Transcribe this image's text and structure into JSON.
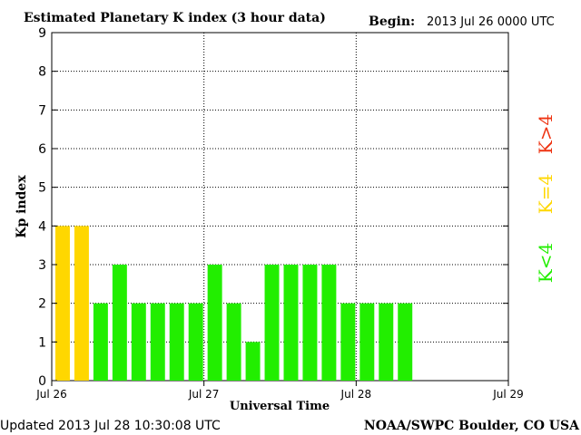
{
  "header": {
    "title": "Estimated Planetary K index (3 hour data)",
    "begin_label": "Begin:",
    "begin_value": "2013 Jul 26 0000 UTC"
  },
  "footer": {
    "updated": "Updated 2013 Jul 28 10:30:08 UTC",
    "source": "NOAA/SWPC Boulder, CO USA"
  },
  "legend": {
    "high": "K>4",
    "equal": "K=4",
    "low": "K<4"
  },
  "colors": {
    "low": "#22ee00",
    "equal": "#ffd700",
    "high": "#ee3311",
    "grid": "#000000"
  },
  "chart_data": {
    "type": "bar",
    "title": "Estimated Planetary K index (3 hour data)",
    "xlabel": "Universal Time",
    "ylabel": "Kp index",
    "ylim": [
      0,
      9
    ],
    "yticks": [
      "0",
      "1",
      "2",
      "3",
      "4",
      "5",
      "6",
      "7",
      "8",
      "9"
    ],
    "x_tick_labels": [
      "Jul 26",
      "Jul 27",
      "Jul 28",
      "Jul 29"
    ],
    "slots_per_day": 8,
    "grid": true,
    "values": [
      4,
      4,
      2,
      3,
      2,
      2,
      2,
      2,
      3,
      2,
      1,
      3,
      3,
      3,
      3,
      2,
      2,
      2,
      2
    ]
  }
}
